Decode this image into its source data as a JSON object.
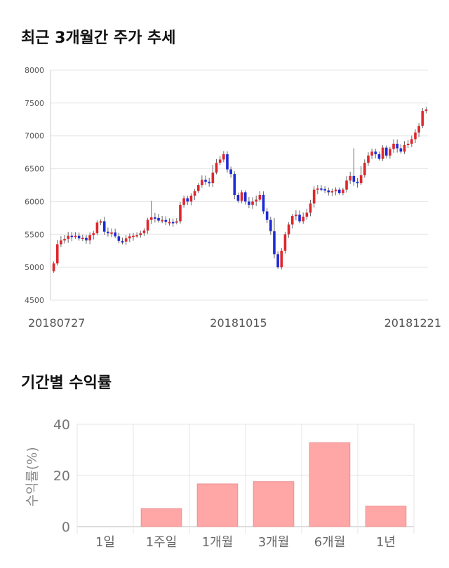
{
  "sections": {
    "price_title": "최근 3개월간 주가 추세",
    "returns_title": "기간별 수익률"
  },
  "chart_data": [
    {
      "type": "candlestick",
      "title": "최근 3개월간 주가 추세",
      "ylim": [
        4500,
        8000
      ],
      "yticks": [
        "8000",
        "7500",
        "7000",
        "6500",
        "6000",
        "5500",
        "5000",
        "4500"
      ],
      "xticks": [
        "20180727",
        "20181015",
        "20181221"
      ],
      "grid": true,
      "up_color": "#e0262b",
      "down_color": "#1f2ad6",
      "closes": [
        5060,
        5350,
        5410,
        5430,
        5480,
        5460,
        5480,
        5440,
        5450,
        5410,
        5490,
        5520,
        5680,
        5700,
        5540,
        5520,
        5530,
        5470,
        5400,
        5390,
        5440,
        5470,
        5480,
        5490,
        5520,
        5560,
        5720,
        5760,
        5750,
        5710,
        5720,
        5690,
        5690,
        5680,
        5700,
        5950,
        6050,
        6000,
        6090,
        6160,
        6250,
        6330,
        6300,
        6280,
        6440,
        6590,
        6640,
        6720,
        6490,
        6420,
        6100,
        6010,
        6140,
        6000,
        5950,
        6000,
        6030,
        6100,
        5850,
        5720,
        5550,
        5200,
        5000,
        5250,
        5500,
        5650,
        5780,
        5800,
        5700,
        5770,
        5830,
        5970,
        6180,
        6200,
        6190,
        6170,
        6140,
        6160,
        6180,
        6130,
        6180,
        6320,
        6390,
        6300,
        6280,
        6400,
        6590,
        6700,
        6760,
        6720,
        6650,
        6820,
        6700,
        6800,
        6880,
        6810,
        6760,
        6860,
        6880,
        6950,
        7050,
        7150,
        7380,
        7400
      ]
    },
    {
      "type": "bar",
      "title": "기간별 수익률",
      "categories": [
        "1일",
        "1주일",
        "1개월",
        "3개월",
        "6개월",
        "1년"
      ],
      "values": [
        0,
        7,
        16.7,
        17.6,
        32.8,
        8
      ],
      "ylabel": "수익률(%)",
      "ylim": [
        0,
        40
      ],
      "yticks": [
        "40",
        "20",
        "0"
      ],
      "bar_color": "#ffa6a6",
      "grid": true
    }
  ]
}
